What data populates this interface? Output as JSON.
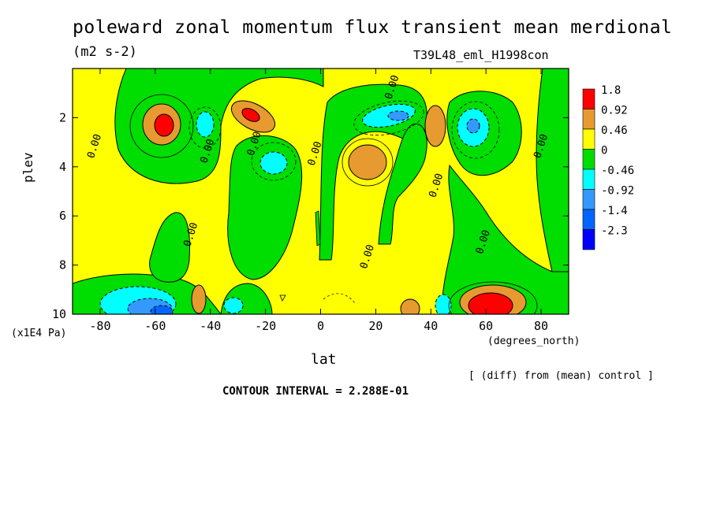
{
  "chart_data": {
    "type": "heatmap",
    "title": "poleward zonal momentum flux transient mean merdional",
    "units": "(m2 s-2)",
    "run_id": "T39L48_eml_H1998con",
    "xlabel": "lat",
    "xunits": "(degrees_north)",
    "ylabel": "plev",
    "yunits": "(x1E4 Pa)",
    "xlim": [
      -90,
      90
    ],
    "ylim": [
      10,
      0
    ],
    "x_ticks": [
      "-80",
      "-60",
      "-40",
      "-20",
      "0",
      "20",
      "40",
      "60",
      "80"
    ],
    "x_tick_values": [
      -80,
      -60,
      -40,
      -20,
      0,
      20,
      40,
      60,
      80
    ],
    "y_ticks": [
      "2",
      "4",
      "6",
      "8",
      "10"
    ],
    "y_tick_values": [
      2,
      4,
      6,
      8,
      10
    ],
    "contour_interval": "CONTOUR INTERVAL = 2.288E-01",
    "note": "[ (diff) from (mean) control ]",
    "legend": {
      "placement": "right",
      "labels": [
        "1.8",
        "0.92",
        "0.46",
        "0",
        "-0.46",
        "-0.92",
        "-1.4",
        "-2.3"
      ],
      "colors": [
        "#ff0000",
        "#e69a30",
        "#ffff00",
        "#00dd00",
        "#00ffff",
        "#3399ff",
        "#0066ff",
        "#0000ff"
      ]
    },
    "contour_labels": [
      {
        "text": "0.00",
        "lat": -81,
        "p": 3.2
      },
      {
        "text": "0.00",
        "lat": -40,
        "p": 3.4
      },
      {
        "text": "0.00",
        "lat": -23,
        "p": 3.1
      },
      {
        "text": "0.00",
        "lat": -1,
        "p": 3.5
      },
      {
        "text": "0.00",
        "lat": 27,
        "p": 0.8
      },
      {
        "text": "0.00",
        "lat": 43,
        "p": 4.8
      },
      {
        "text": "0.00",
        "lat": -46,
        "p": 6.8
      },
      {
        "text": "0.00",
        "lat": 18,
        "p": 7.7
      },
      {
        "text": "0.00",
        "lat": 60,
        "p": 7.1
      },
      {
        "text": "0.00",
        "lat": 81,
        "p": 3.2
      }
    ],
    "features": [
      {
        "lat": -56,
        "p": 2.4,
        "value": 1.8
      },
      {
        "lat": -26,
        "p": 2.0,
        "value": 1.6
      },
      {
        "lat": 19,
        "p": 3.9,
        "value": 0.9
      },
      {
        "lat": 42,
        "p": 2.4,
        "value": 0.9
      },
      {
        "lat": -40,
        "p": 2.4,
        "value": -0.6
      },
      {
        "lat": -16,
        "p": 3.9,
        "value": -0.8
      },
      {
        "lat": 28,
        "p": 1.9,
        "value": -1.0
      },
      {
        "lat": 54,
        "p": 2.4,
        "value": -0.9
      },
      {
        "lat": -58,
        "p": 9.6,
        "value": -1.8
      },
      {
        "lat": -42,
        "p": 9.5,
        "value": 0.8
      },
      {
        "lat": 58,
        "p": 9.4,
        "value": 2.0
      },
      {
        "lat": 40,
        "p": 9.6,
        "value": -0.8
      }
    ]
  }
}
